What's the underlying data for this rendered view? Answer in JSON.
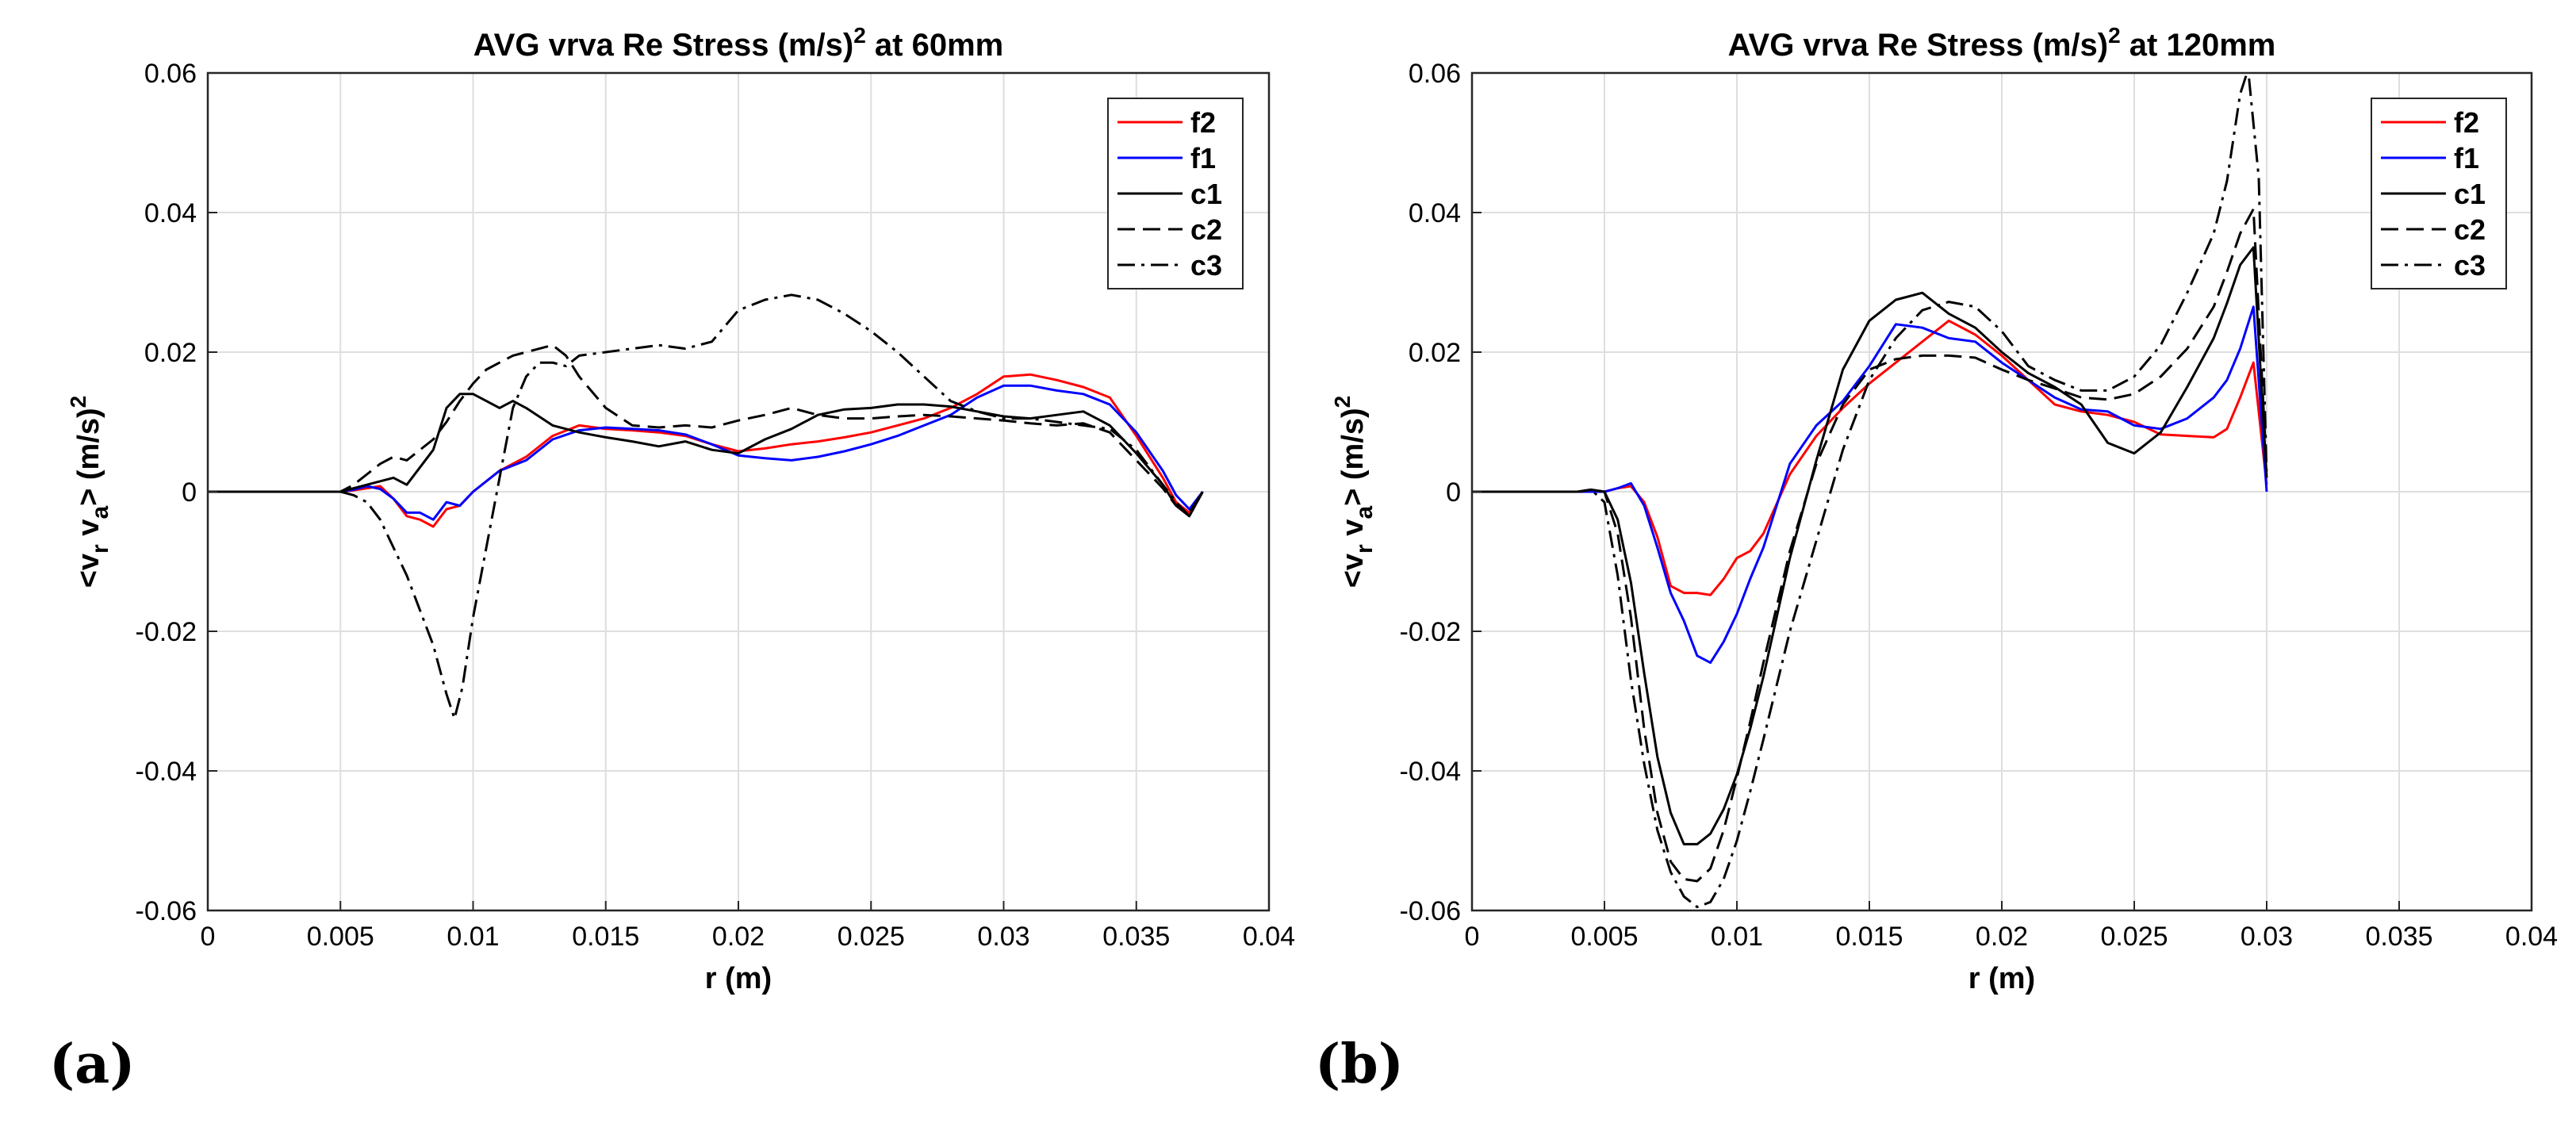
{
  "panel_labels": [
    "(a)",
    "(b)"
  ],
  "chart_data": [
    {
      "type": "line",
      "title": "AVG vrva Re Stress (m/s)",
      "title_sup": "2",
      "title_suffix": " at 60mm",
      "xlabel": "r (m)",
      "ylabel": "<v",
      "ylabel_sub1": "r",
      "ylabel_mid": " v",
      "ylabel_sub2": "a",
      "ylabel_end": "> (m/s)",
      "ylabel_sup": "2",
      "xlim": [
        0,
        0.04
      ],
      "ylim": [
        -0.06,
        0.06
      ],
      "xticks": [
        0,
        0.005,
        0.01,
        0.015,
        0.02,
        0.025,
        0.03,
        0.035,
        0.04
      ],
      "xtick_labels": [
        "0",
        "0.005",
        "0.01",
        "0.015",
        "0.02",
        "0.025",
        "0.03",
        "0.035",
        "0.04"
      ],
      "yticks": [
        -0.06,
        -0.04,
        -0.02,
        0,
        0.02,
        0.04,
        0.06
      ],
      "ytick_labels": [
        "-0.06",
        "-0.04",
        "-0.02",
        "0",
        "0.02",
        "0.04",
        "0.06"
      ],
      "grid": true,
      "legend_position": "top-right",
      "series": [
        {
          "name": "f2",
          "color": "#ff0000",
          "dash": "solid",
          "x": [
            0,
            0.005,
            0.0055,
            0.006,
            0.0065,
            0.007,
            0.0075,
            0.008,
            0.0085,
            0.009,
            0.0095,
            0.01,
            0.011,
            0.012,
            0.013,
            0.014,
            0.015,
            0.016,
            0.017,
            0.018,
            0.019,
            0.02,
            0.021,
            0.022,
            0.023,
            0.024,
            0.025,
            0.026,
            0.027,
            0.028,
            0.029,
            0.03,
            0.031,
            0.032,
            0.033,
            0.034,
            0.035,
            0.036,
            0.0365,
            0.037,
            0.0375
          ],
          "y": [
            0,
            0,
            0.0002,
            0.0005,
            0.0008,
            -0.001,
            -0.0035,
            -0.004,
            -0.005,
            -0.0025,
            -0.002,
            0,
            0.003,
            0.005,
            0.008,
            0.0095,
            0.009,
            0.0088,
            0.0085,
            0.008,
            0.0068,
            0.0058,
            0.0062,
            0.0068,
            0.0072,
            0.0078,
            0.0085,
            0.0095,
            0.0105,
            0.012,
            0.014,
            0.0165,
            0.0168,
            0.016,
            0.015,
            0.0135,
            0.008,
            0.002,
            -0.0015,
            -0.003,
            0
          ]
        },
        {
          "name": "f1",
          "color": "#0000ff",
          "dash": "solid",
          "x": [
            0,
            0.005,
            0.0055,
            0.006,
            0.0065,
            0.007,
            0.0075,
            0.008,
            0.0085,
            0.009,
            0.0095,
            0.01,
            0.011,
            0.012,
            0.013,
            0.014,
            0.015,
            0.016,
            0.017,
            0.018,
            0.019,
            0.02,
            0.021,
            0.022,
            0.023,
            0.024,
            0.025,
            0.026,
            0.027,
            0.028,
            0.029,
            0.03,
            0.031,
            0.032,
            0.033,
            0.034,
            0.035,
            0.036,
            0.0365,
            0.037,
            0.0375
          ],
          "y": [
            0,
            0,
            0.0003,
            0.0008,
            0.0004,
            -0.001,
            -0.003,
            -0.003,
            -0.004,
            -0.0015,
            -0.002,
            0,
            0.003,
            0.0045,
            0.0075,
            0.0088,
            0.0092,
            0.009,
            0.0088,
            0.0082,
            0.0068,
            0.0052,
            0.0048,
            0.0045,
            0.005,
            0.0058,
            0.0068,
            0.008,
            0.0095,
            0.011,
            0.0135,
            0.0152,
            0.0152,
            0.0145,
            0.014,
            0.0125,
            0.0085,
            0.003,
            -0.0005,
            -0.0025,
            0
          ]
        },
        {
          "name": "c1",
          "color": "#000000",
          "dash": "solid",
          "x": [
            0,
            0.005,
            0.0055,
            0.006,
            0.0065,
            0.007,
            0.0075,
            0.008,
            0.0085,
            0.009,
            0.0095,
            0.01,
            0.0105,
            0.011,
            0.0115,
            0.012,
            0.013,
            0.014,
            0.015,
            0.016,
            0.017,
            0.018,
            0.019,
            0.02,
            0.021,
            0.022,
            0.023,
            0.024,
            0.025,
            0.026,
            0.027,
            0.028,
            0.029,
            0.03,
            0.031,
            0.032,
            0.033,
            0.034,
            0.035,
            0.036,
            0.0365,
            0.037,
            0.0375
          ],
          "y": [
            0,
            0,
            0.0005,
            0.001,
            0.0015,
            0.002,
            0.001,
            0.0035,
            0.006,
            0.012,
            0.014,
            0.014,
            0.013,
            0.012,
            0.013,
            0.012,
            0.0095,
            0.0085,
            0.0078,
            0.0072,
            0.0065,
            0.0072,
            0.006,
            0.0055,
            0.0075,
            0.009,
            0.011,
            0.0118,
            0.012,
            0.0125,
            0.0125,
            0.0122,
            0.0115,
            0.0108,
            0.0105,
            0.011,
            0.0115,
            0.0095,
            0.0055,
            0.001,
            -0.002,
            -0.0035,
            0
          ]
        },
        {
          "name": "c2",
          "color": "#000000",
          "dash": "dashed",
          "x": [
            0,
            0.005,
            0.0055,
            0.006,
            0.0065,
            0.007,
            0.0075,
            0.008,
            0.0085,
            0.009,
            0.0095,
            0.01,
            0.0105,
            0.011,
            0.0115,
            0.012,
            0.0125,
            0.013,
            0.0135,
            0.014,
            0.015,
            0.016,
            0.017,
            0.018,
            0.019,
            0.02,
            0.021,
            0.022,
            0.023,
            0.024,
            0.025,
            0.026,
            0.027,
            0.028,
            0.029,
            0.03,
            0.031,
            0.032,
            0.033,
            0.034,
            0.035,
            0.036,
            0.0365,
            0.037,
            0.0375
          ],
          "y": [
            0,
            0,
            0.001,
            0.0025,
            0.004,
            0.005,
            0.0045,
            0.006,
            0.0075,
            0.01,
            0.013,
            0.0155,
            0.0175,
            0.0185,
            0.0195,
            0.02,
            0.0205,
            0.021,
            0.0195,
            0.0165,
            0.012,
            0.0095,
            0.0092,
            0.0095,
            0.0092,
            0.0102,
            0.011,
            0.012,
            0.011,
            0.0105,
            0.0105,
            0.0108,
            0.011,
            0.0108,
            0.0105,
            0.0102,
            0.0098,
            0.0095,
            0.0098,
            0.0085,
            0.0045,
            0.0005,
            -0.002,
            -0.003,
            0
          ]
        },
        {
          "name": "c3",
          "color": "#000000",
          "dash": "dashdot",
          "x": [
            0,
            0.005,
            0.0055,
            0.006,
            0.0065,
            0.007,
            0.0075,
            0.008,
            0.0085,
            0.009,
            0.0093,
            0.0096,
            0.01,
            0.0105,
            0.011,
            0.0115,
            0.012,
            0.0125,
            0.013,
            0.0135,
            0.014,
            0.015,
            0.016,
            0.017,
            0.018,
            0.019,
            0.02,
            0.021,
            0.022,
            0.023,
            0.024,
            0.025,
            0.026,
            0.027,
            0.028,
            0.029,
            0.03,
            0.031,
            0.032,
            0.033,
            0.034,
            0.035,
            0.036,
            0.0365,
            0.037,
            0.0375
          ],
          "y": [
            0,
            0,
            -0.0005,
            -0.0015,
            -0.004,
            -0.008,
            -0.012,
            -0.017,
            -0.022,
            -0.029,
            -0.0325,
            -0.028,
            -0.018,
            -0.008,
            0.002,
            0.012,
            0.0165,
            0.0185,
            0.0185,
            0.018,
            0.0195,
            0.02,
            0.0205,
            0.021,
            0.0205,
            0.0215,
            0.026,
            0.0275,
            0.0282,
            0.0275,
            0.0255,
            0.023,
            0.02,
            0.0165,
            0.013,
            0.0115,
            0.0105,
            0.0105,
            0.01,
            0.0095,
            0.009,
            0.006,
            0.001,
            -0.0015,
            -0.0035,
            0
          ]
        }
      ]
    },
    {
      "type": "line",
      "title": "AVG vrva Re Stress (m/s)",
      "title_sup": "2",
      "title_suffix": " at 120mm",
      "xlabel": "r (m)",
      "ylabel": "<v",
      "ylabel_sub1": "r",
      "ylabel_mid": " v",
      "ylabel_sub2": "a",
      "ylabel_end": "> (m/s)",
      "ylabel_sup": "2",
      "xlim": [
        0,
        0.04
      ],
      "ylim": [
        -0.06,
        0.06
      ],
      "xticks": [
        0,
        0.005,
        0.01,
        0.015,
        0.02,
        0.025,
        0.03,
        0.035,
        0.04
      ],
      "xtick_labels": [
        "0",
        "0.005",
        "0.01",
        "0.015",
        "0.02",
        "0.025",
        "0.03",
        "0.035",
        "0.04"
      ],
      "yticks": [
        -0.06,
        -0.04,
        -0.02,
        0,
        0.02,
        0.04,
        0.06
      ],
      "ytick_labels": [
        "-0.06",
        "-0.04",
        "-0.02",
        "0",
        "0.02",
        "0.04",
        "0.06"
      ],
      "grid": true,
      "legend_position": "top-right",
      "series": [
        {
          "name": "f2",
          "color": "#ff0000",
          "dash": "solid",
          "x": [
            0,
            0.005,
            0.0055,
            0.006,
            0.0065,
            0.007,
            0.0075,
            0.008,
            0.0085,
            0.009,
            0.0095,
            0.01,
            0.0105,
            0.011,
            0.012,
            0.013,
            0.014,
            0.015,
            0.016,
            0.017,
            0.018,
            0.019,
            0.02,
            0.021,
            0.022,
            0.023,
            0.024,
            0.025,
            0.026,
            0.027,
            0.028,
            0.0285,
            0.029,
            0.0295,
            0.03
          ],
          "y": [
            0,
            0,
            0.0005,
            0.0008,
            -0.0015,
            -0.0065,
            -0.0135,
            -0.0145,
            -0.0145,
            -0.0148,
            -0.0125,
            -0.0095,
            -0.0085,
            -0.006,
            0.0025,
            0.008,
            0.012,
            0.0155,
            0.0185,
            0.0215,
            0.0245,
            0.0225,
            0.0195,
            0.016,
            0.0125,
            0.0115,
            0.011,
            0.01,
            0.0082,
            0.008,
            0.0078,
            0.009,
            0.0135,
            0.0185,
            0.001
          ]
        },
        {
          "name": "f1",
          "color": "#0000ff",
          "dash": "solid",
          "x": [
            0,
            0.005,
            0.0055,
            0.006,
            0.0065,
            0.007,
            0.0075,
            0.008,
            0.0085,
            0.009,
            0.0095,
            0.01,
            0.0105,
            0.011,
            0.012,
            0.013,
            0.014,
            0.015,
            0.016,
            0.017,
            0.018,
            0.019,
            0.02,
            0.021,
            0.022,
            0.023,
            0.024,
            0.025,
            0.026,
            0.027,
            0.028,
            0.0285,
            0.029,
            0.0295,
            0.03
          ],
          "y": [
            0,
            0,
            0.0005,
            0.0012,
            -0.002,
            -0.008,
            -0.0145,
            -0.0185,
            -0.0235,
            -0.0245,
            -0.0215,
            -0.0175,
            -0.0125,
            -0.008,
            0.004,
            0.0095,
            0.013,
            0.018,
            0.024,
            0.0235,
            0.022,
            0.0215,
            0.0185,
            0.016,
            0.0135,
            0.0118,
            0.0115,
            0.0095,
            0.009,
            0.0105,
            0.0135,
            0.016,
            0.0205,
            0.0265,
            0
          ]
        },
        {
          "name": "c1",
          "color": "#000000",
          "dash": "solid",
          "x": [
            0,
            0.004,
            0.0045,
            0.005,
            0.0055,
            0.006,
            0.0065,
            0.007,
            0.0075,
            0.008,
            0.0085,
            0.009,
            0.0095,
            0.01,
            0.0105,
            0.011,
            0.012,
            0.013,
            0.014,
            0.015,
            0.016,
            0.017,
            0.018,
            0.019,
            0.02,
            0.021,
            0.022,
            0.023,
            0.024,
            0.025,
            0.026,
            0.027,
            0.028,
            0.0285,
            0.029,
            0.0295,
            0.03
          ],
          "y": [
            0,
            0,
            0.0003,
            0,
            -0.004,
            -0.013,
            -0.026,
            -0.038,
            -0.046,
            -0.0505,
            -0.0505,
            -0.049,
            -0.0455,
            -0.0405,
            -0.034,
            -0.0265,
            -0.0095,
            0.0045,
            0.0175,
            0.0245,
            0.0275,
            0.0285,
            0.0255,
            0.0235,
            0.02,
            0.017,
            0.015,
            0.0125,
            0.007,
            0.0055,
            0.0085,
            0.015,
            0.022,
            0.027,
            0.0325,
            0.035,
            0.002
          ]
        },
        {
          "name": "c2",
          "color": "#000000",
          "dash": "dashed",
          "x": [
            0,
            0.004,
            0.0045,
            0.005,
            0.0055,
            0.006,
            0.0065,
            0.007,
            0.0075,
            0.008,
            0.0085,
            0.009,
            0.0095,
            0.01,
            0.0105,
            0.011,
            0.012,
            0.013,
            0.014,
            0.015,
            0.016,
            0.017,
            0.018,
            0.019,
            0.02,
            0.021,
            0.022,
            0.023,
            0.024,
            0.025,
            0.026,
            0.027,
            0.028,
            0.0285,
            0.029,
            0.0295,
            0.03
          ],
          "y": [
            0,
            0,
            0.0003,
            0,
            -0.006,
            -0.018,
            -0.034,
            -0.046,
            -0.053,
            -0.0555,
            -0.0558,
            -0.054,
            -0.0485,
            -0.041,
            -0.033,
            -0.0245,
            -0.0085,
            0.004,
            0.0125,
            0.0175,
            0.019,
            0.0195,
            0.0195,
            0.0192,
            0.0175,
            0.016,
            0.0148,
            0.0135,
            0.0132,
            0.014,
            0.0165,
            0.0205,
            0.0265,
            0.0315,
            0.037,
            0.0405,
            0.003
          ]
        },
        {
          "name": "c3",
          "color": "#000000",
          "dash": "dashdot",
          "x": [
            0,
            0.004,
            0.0045,
            0.005,
            0.0055,
            0.006,
            0.0065,
            0.007,
            0.0075,
            0.008,
            0.0085,
            0.009,
            0.0095,
            0.01,
            0.0105,
            0.011,
            0.012,
            0.013,
            0.014,
            0.015,
            0.016,
            0.017,
            0.018,
            0.019,
            0.02,
            0.021,
            0.022,
            0.023,
            0.024,
            0.025,
            0.026,
            0.027,
            0.028,
            0.0285,
            0.029,
            0.0293,
            0.0297,
            0.03
          ],
          "y": [
            0,
            0,
            0.0003,
            -0.0015,
            -0.012,
            -0.027,
            -0.039,
            -0.0485,
            -0.0545,
            -0.058,
            -0.0595,
            -0.0588,
            -0.0555,
            -0.05,
            -0.043,
            -0.0355,
            -0.02,
            -0.007,
            0.006,
            0.016,
            0.022,
            0.026,
            0.0272,
            0.0265,
            0.023,
            0.018,
            0.016,
            0.0145,
            0.0145,
            0.0165,
            0.021,
            0.0285,
            0.037,
            0.0445,
            0.057,
            0.0605,
            0.045,
            0.002
          ]
        }
      ]
    }
  ]
}
